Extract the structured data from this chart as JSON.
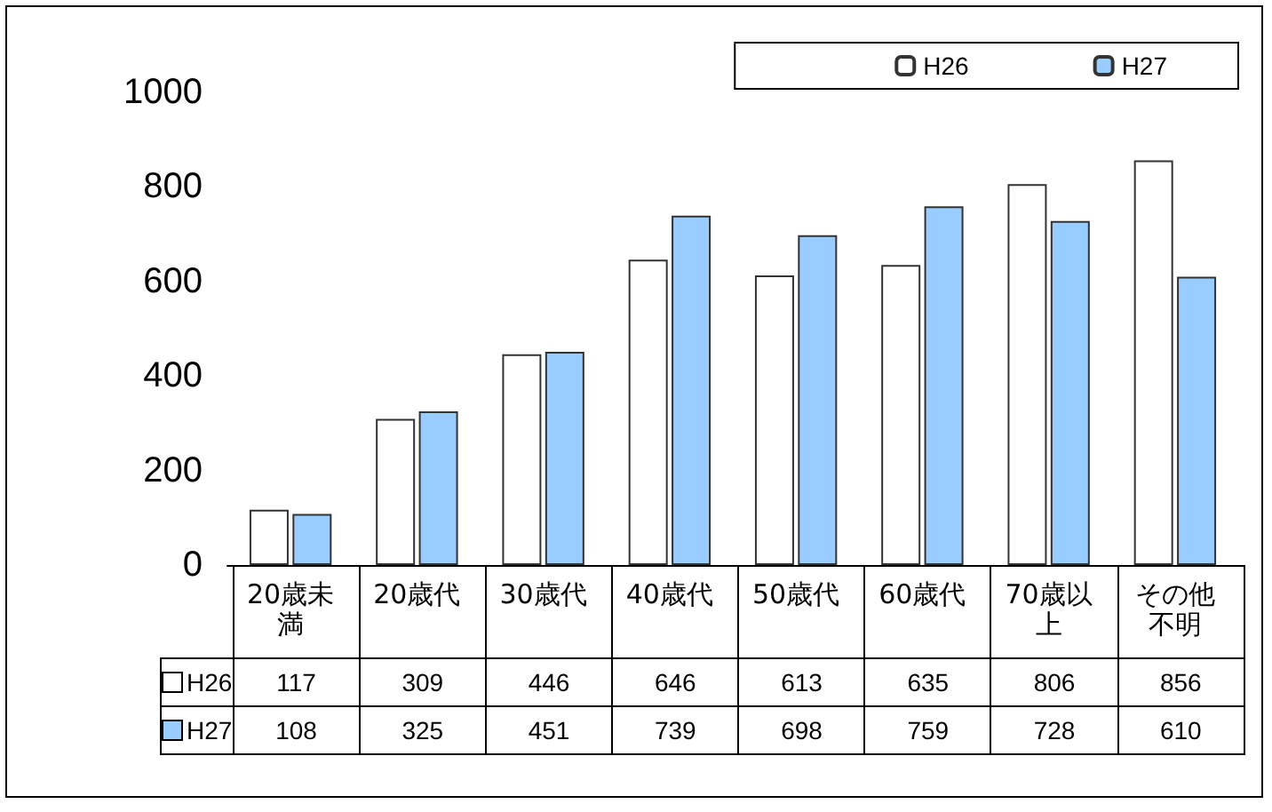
{
  "chart_data": {
    "type": "bar",
    "categories": [
      "20歳未満",
      "20歳代",
      "30歳代",
      "40歳代",
      "50歳代",
      "60歳代",
      "70歳以上",
      "その他不明"
    ],
    "series": [
      {
        "name": "H26",
        "color": "#ffffff",
        "values": [
          117,
          309,
          446,
          646,
          613,
          635,
          806,
          856
        ]
      },
      {
        "name": "H27",
        "color": "#99ccff",
        "values": [
          108,
          325,
          451,
          739,
          698,
          759,
          728,
          610
        ]
      }
    ],
    "ylim": [
      0,
      1000
    ],
    "yticks": [
      0,
      200,
      400,
      600,
      800,
      1000
    ],
    "grid": false,
    "legend": "top right",
    "data_labels": true
  }
}
